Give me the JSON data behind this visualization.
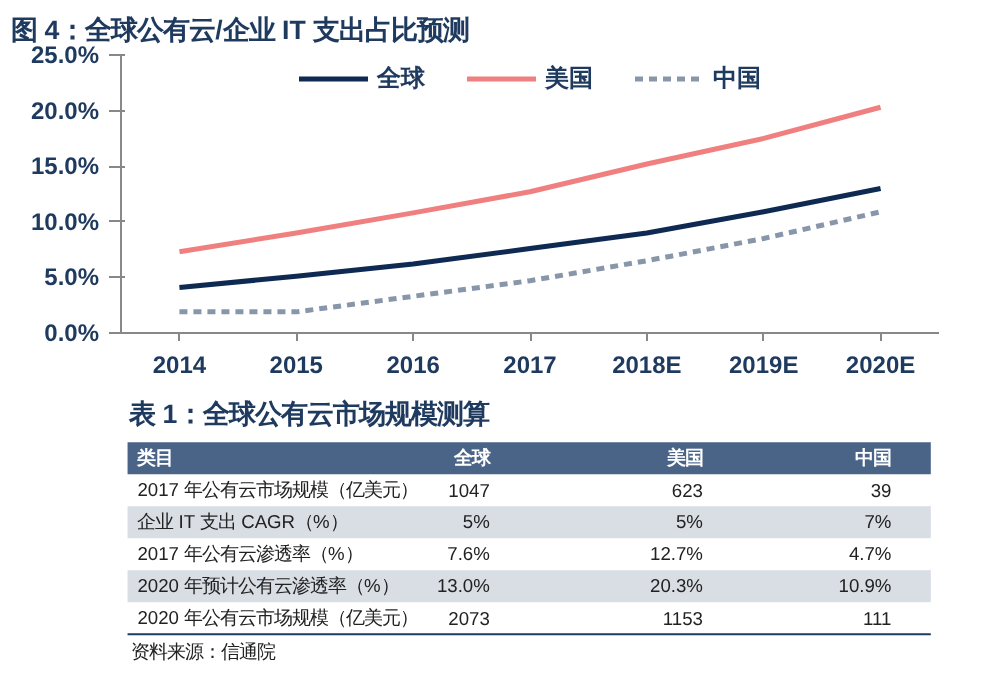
{
  "chart_data": [
    {
      "type": "line",
      "title": "图 4：全球公有云/企业 IT 支出占比预测",
      "categories": [
        "2014",
        "2015",
        "2016",
        "2017",
        "2018E",
        "2019E",
        "2020E"
      ],
      "series": [
        {
          "name": "全球",
          "color": "#0f2a52",
          "values": [
            4.1,
            5.1,
            6.2,
            7.6,
            9.0,
            10.9,
            13.0
          ]
        },
        {
          "name": "美国",
          "color": "#f07f7f",
          "values": [
            7.3,
            9.0,
            10.8,
            12.7,
            15.2,
            17.5,
            20.3
          ]
        },
        {
          "name": "中国",
          "color": "#8896aa",
          "line_style": "dashed",
          "values": [
            1.9,
            1.9,
            3.3,
            4.7,
            6.5,
            8.5,
            10.9
          ]
        }
      ],
      "ylim": [
        0,
        25
      ],
      "yticks": [
        {
          "value": 0,
          "label": "0.0%"
        },
        {
          "value": 5,
          "label": "5.0%"
        },
        {
          "value": 10,
          "label": "10.0%"
        },
        {
          "value": 15,
          "label": "15.0%"
        },
        {
          "value": 20,
          "label": "20.0%"
        },
        {
          "value": 25,
          "label": "25.0%"
        }
      ],
      "grid": false,
      "legend": "top",
      "line_style": "solid",
      "marker": "none"
    },
    {
      "type": "other",
      "title": "表 1：全球公有云市场规模测算",
      "xlabel": "类目",
      "categories": [
        "2017 年公有云市场规模（亿美元）",
        "企业 IT 支出 CAGR（%）",
        "2017 年公有云渗透率（%）",
        "2020 年预计公有云渗透率（%）",
        "2020 年公有云市场规模（亿美元）"
      ],
      "series": [
        {
          "name": "全球",
          "values": [
            1047,
            5,
            7.6,
            13.0,
            2073
          ],
          "value_labels": [
            "1047",
            "5%",
            "7.6%",
            "13.0%",
            "2073"
          ]
        },
        {
          "name": "美国",
          "values": [
            623,
            5,
            12.7,
            20.3,
            1153
          ],
          "value_labels": [
            "623",
            "5%",
            "12.7%",
            "20.3%",
            "1153"
          ]
        },
        {
          "name": "中国",
          "values": [
            39,
            7,
            4.7,
            10.9,
            111
          ],
          "value_labels": [
            "39",
            "7%",
            "4.7%",
            "10.9%",
            "111"
          ]
        }
      ],
      "annotations": [
        "资料来源：信通院"
      ]
    }
  ]
}
